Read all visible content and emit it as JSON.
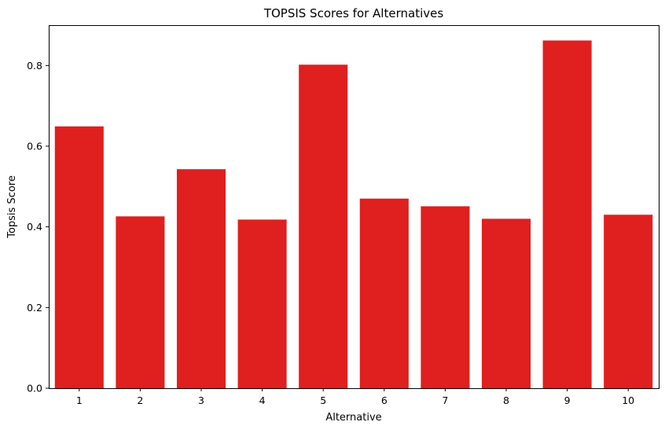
{
  "chart_data": {
    "type": "bar",
    "title": "TOPSIS Scores for Alternatives",
    "xlabel": "Alternative",
    "ylabel": "Topsis Score",
    "categories": [
      "1",
      "2",
      "3",
      "4",
      "5",
      "6",
      "7",
      "8",
      "9",
      "10"
    ],
    "values": [
      0.649,
      0.426,
      0.543,
      0.418,
      0.802,
      0.47,
      0.451,
      0.42,
      0.862,
      0.43
    ],
    "ylim": [
      0,
      0.9
    ],
    "yticks": [
      0.0,
      0.2,
      0.4,
      0.6,
      0.8
    ],
    "ytick_labels": [
      "0.0",
      "0.2",
      "0.4",
      "0.6",
      "0.8"
    ],
    "grid": false,
    "legend": "none",
    "bar_color": "#e01f1f"
  }
}
